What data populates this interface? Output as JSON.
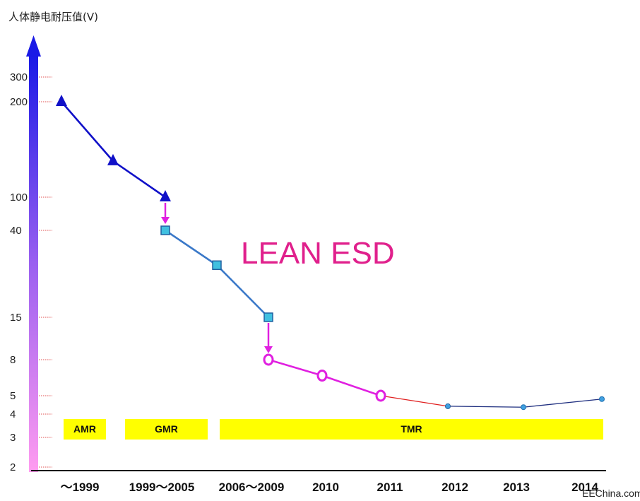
{
  "chart_data": {
    "type": "line",
    "ylabel": "人体静电耐压值(V)",
    "y_ticks": [
      "300",
      "200",
      "100",
      "40",
      "15",
      "8",
      "5",
      "4",
      "3",
      "2"
    ],
    "x_categories": [
      "～1999",
      "1999～2005",
      "2006～2009",
      "2010",
      "2011",
      "2012",
      "2013",
      "2014"
    ],
    "segments": [
      {
        "color": "#1010c8",
        "marker": "triangle",
        "points": [
          {
            "x": "～1999",
            "y": 200
          },
          {
            "x": "～1999/1999～2005",
            "y": 130
          },
          {
            "x": "1999～2005",
            "y": 100
          }
        ]
      },
      {
        "color": "#3a78c8",
        "marker": "square",
        "points": [
          {
            "x": "1999～2005",
            "y": 40
          },
          {
            "x": "1999～2005/2006～2009",
            "y": 27
          },
          {
            "x": "2006～2009",
            "y": 15
          }
        ]
      },
      {
        "color": "#e020e0",
        "marker": "ring",
        "points": [
          {
            "x": "2006～2009",
            "y": 8
          },
          {
            "x": "2010",
            "y": 6.5
          },
          {
            "x": "2011",
            "y": 5
          }
        ]
      },
      {
        "color": "#e02020",
        "marker": "dot",
        "points": [
          {
            "x": "2011",
            "y": 5
          },
          {
            "x": "2012",
            "y": 4.4
          }
        ]
      },
      {
        "color": "#203080",
        "marker": "dot",
        "points": [
          {
            "x": "2012",
            "y": 4.4
          },
          {
            "x": "2013",
            "y": 4.35
          },
          {
            "x": "2014",
            "y": 4.8
          }
        ]
      }
    ],
    "drop_arrows": [
      {
        "x": "1999～2005",
        "from": 100,
        "to": 40,
        "color": "#e020e0"
      },
      {
        "x": "2006～2009",
        "from": 15,
        "to": 8,
        "color": "#e020e0"
      }
    ],
    "bands": [
      {
        "label": "AMR",
        "color": "#ffff00"
      },
      {
        "label": "GMR",
        "color": "#ffff00"
      },
      {
        "label": "TMR",
        "color": "#ffff00"
      }
    ],
    "annotation": "LEAN ESD",
    "watermark": "EEChina.com",
    "grid": "dotted red tick marks at y-axis"
  }
}
